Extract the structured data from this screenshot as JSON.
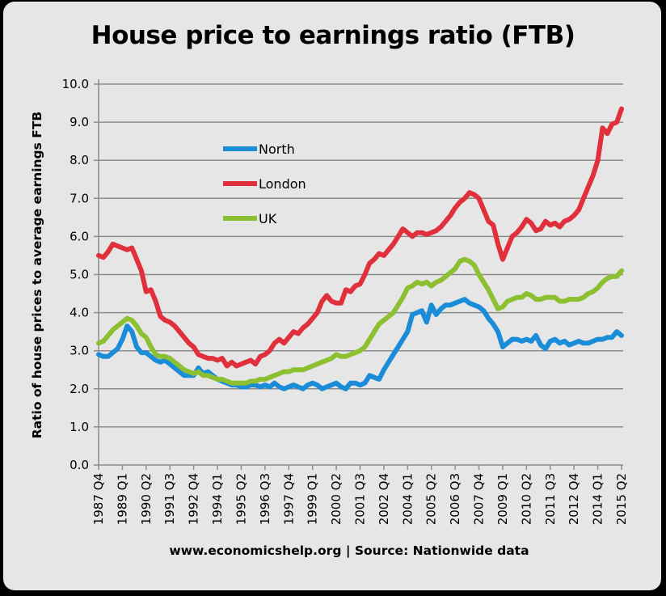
{
  "chart_data": {
    "type": "line",
    "title": "House price to earnings ratio (FTB)",
    "ylabel": "Ratio of house prices to average earnings FTB",
    "xlabel": "",
    "footer": "www.economicshelp.org | Source: Nationwide data",
    "x_start": "1987 Q4",
    "x_end": "2015 Q2",
    "x_frequency": "quarterly",
    "x_tick_labels": [
      "1987 Q4",
      "1989 Q1",
      "1990 Q2",
      "1991 Q3",
      "1992 Q4",
      "1994 Q1",
      "1995 Q2",
      "1996 Q3",
      "1997 Q4",
      "1999 Q1",
      "2000 Q2",
      "2001 Q3",
      "2002 Q4",
      "2004 Q1",
      "2005 Q2",
      "2006 Q3",
      "2007 Q4",
      "2009 Q1",
      "2010 Q2",
      "2011 Q3",
      "2012 Q4",
      "2014 Q1",
      "2015 Q2"
    ],
    "y_tick_labels": [
      "0.0",
      "1.0",
      "2.0",
      "3.0",
      "4.0",
      "5.0",
      "6.0",
      "7.0",
      "8.0",
      "9.0",
      "10.0"
    ],
    "ylim": [
      0,
      10
    ],
    "grid": "horizontal",
    "legend_placement": "upper-left inside",
    "series": [
      {
        "name": "North",
        "color": "#1a8cd8",
        "values": [
          2.9,
          2.85,
          2.85,
          2.95,
          3.05,
          3.3,
          3.65,
          3.5,
          3.1,
          2.95,
          2.95,
          2.85,
          2.75,
          2.7,
          2.75,
          2.65,
          2.55,
          2.45,
          2.35,
          2.35,
          2.35,
          2.55,
          2.4,
          2.45,
          2.35,
          2.25,
          2.2,
          2.15,
          2.1,
          2.1,
          2.05,
          2.05,
          2.1,
          2.1,
          2.05,
          2.1,
          2.05,
          2.15,
          2.05,
          2.0,
          2.05,
          2.1,
          2.05,
          2.0,
          2.1,
          2.15,
          2.1,
          2.0,
          2.05,
          2.1,
          2.15,
          2.05,
          2.0,
          2.15,
          2.15,
          2.1,
          2.15,
          2.35,
          2.3,
          2.25,
          2.5,
          2.7,
          2.9,
          3.1,
          3.3,
          3.5,
          3.95,
          4.0,
          4.05,
          3.75,
          4.2,
          3.95,
          4.1,
          4.2,
          4.2,
          4.25,
          4.3,
          4.35,
          4.25,
          4.2,
          4.15,
          4.05,
          3.85,
          3.7,
          3.5,
          3.1,
          3.2,
          3.3,
          3.3,
          3.25,
          3.3,
          3.25,
          3.4,
          3.15,
          3.05,
          3.25,
          3.3,
          3.2,
          3.25,
          3.15,
          3.2,
          3.25,
          3.2,
          3.2,
          3.25,
          3.3,
          3.3,
          3.35,
          3.35,
          3.5,
          3.4
        ]
      },
      {
        "name": "London",
        "color": "#e0303c",
        "values": [
          5.5,
          5.45,
          5.6,
          5.8,
          5.75,
          5.7,
          5.65,
          5.7,
          5.4,
          5.1,
          4.55,
          4.6,
          4.3,
          3.9,
          3.8,
          3.75,
          3.65,
          3.5,
          3.35,
          3.2,
          3.1,
          2.9,
          2.85,
          2.8,
          2.8,
          2.75,
          2.8,
          2.6,
          2.7,
          2.6,
          2.65,
          2.7,
          2.75,
          2.65,
          2.85,
          2.9,
          3.0,
          3.2,
          3.3,
          3.2,
          3.35,
          3.5,
          3.45,
          3.6,
          3.7,
          3.85,
          4.0,
          4.3,
          4.45,
          4.3,
          4.25,
          4.25,
          4.6,
          4.55,
          4.7,
          4.75,
          5.0,
          5.3,
          5.4,
          5.55,
          5.5,
          5.65,
          5.8,
          6.0,
          6.2,
          6.1,
          6.0,
          6.1,
          6.1,
          6.05,
          6.1,
          6.15,
          6.25,
          6.4,
          6.55,
          6.75,
          6.9,
          7.0,
          7.15,
          7.1,
          7.0,
          6.7,
          6.4,
          6.3,
          5.8,
          5.4,
          5.7,
          6.0,
          6.1,
          6.25,
          6.45,
          6.35,
          6.15,
          6.2,
          6.4,
          6.3,
          6.35,
          6.25,
          6.4,
          6.45,
          6.55,
          6.7,
          7.0,
          7.3,
          7.6,
          8.0,
          8.85,
          8.7,
          8.95,
          9.0,
          9.35
        ]
      },
      {
        "name": "UK",
        "color": "#8cc031",
        "values": [
          3.2,
          3.25,
          3.4,
          3.55,
          3.65,
          3.75,
          3.85,
          3.8,
          3.65,
          3.45,
          3.35,
          3.1,
          2.9,
          2.85,
          2.85,
          2.8,
          2.7,
          2.6,
          2.5,
          2.45,
          2.4,
          2.45,
          2.35,
          2.35,
          2.3,
          2.25,
          2.25,
          2.2,
          2.15,
          2.15,
          2.15,
          2.15,
          2.2,
          2.2,
          2.25,
          2.25,
          2.3,
          2.35,
          2.4,
          2.45,
          2.45,
          2.5,
          2.5,
          2.5,
          2.55,
          2.6,
          2.65,
          2.7,
          2.75,
          2.8,
          2.9,
          2.85,
          2.85,
          2.9,
          2.95,
          3.0,
          3.1,
          3.3,
          3.5,
          3.7,
          3.8,
          3.9,
          4.0,
          4.2,
          4.4,
          4.65,
          4.7,
          4.8,
          4.75,
          4.8,
          4.7,
          4.8,
          4.85,
          4.95,
          5.05,
          5.15,
          5.35,
          5.4,
          5.35,
          5.25,
          5.0,
          4.8,
          4.6,
          4.35,
          4.1,
          4.15,
          4.3,
          4.35,
          4.4,
          4.4,
          4.5,
          4.45,
          4.35,
          4.35,
          4.4,
          4.4,
          4.4,
          4.3,
          4.3,
          4.35,
          4.35,
          4.35,
          4.4,
          4.5,
          4.55,
          4.65,
          4.8,
          4.9,
          4.95,
          4.95,
          5.1
        ]
      }
    ]
  }
}
